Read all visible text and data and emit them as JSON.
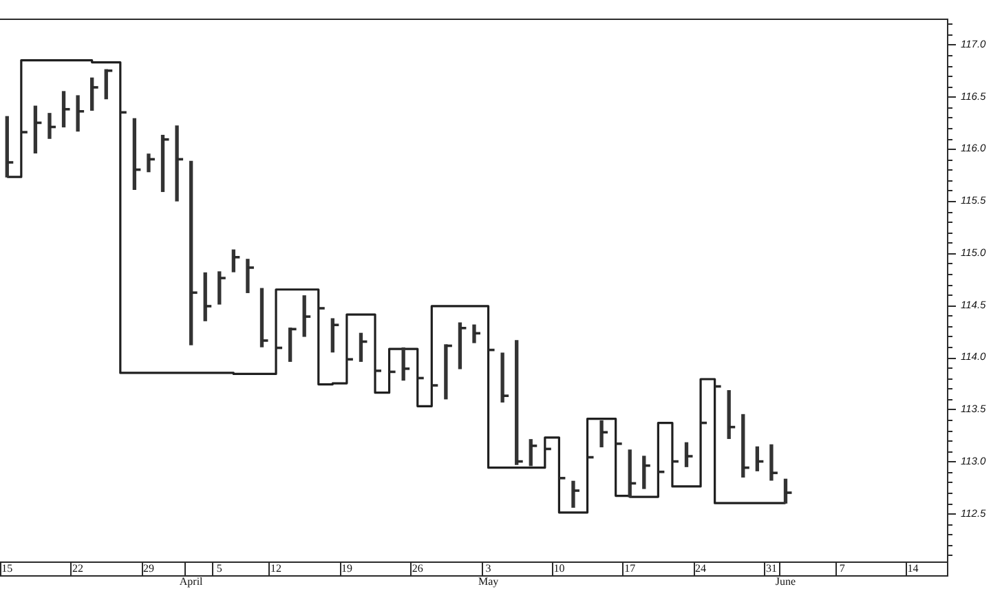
{
  "chart_data": {
    "type": "bar",
    "categories": [
      "15",
      null,
      null,
      null,
      null,
      "22",
      null,
      null,
      null,
      null,
      "29",
      null,
      null,
      "\nApril",
      null,
      "5",
      null,
      null,
      null,
      "12",
      null,
      null,
      null,
      null,
      "19",
      null,
      null,
      null,
      null,
      "26",
      null,
      null,
      null,
      null,
      "3\nMay",
      null,
      null,
      null,
      null,
      "10",
      null,
      null,
      null,
      null,
      "17",
      null,
      null,
      null,
      null,
      "24",
      null,
      null,
      null,
      null,
      "31",
      "\nJune",
      null,
      null,
      null,
      "7",
      null,
      null,
      null,
      null,
      "14",
      null,
      null
    ],
    "series": [
      {
        "color": "#333333",
        "base": [
          115.73,
          null,
          115.96,
          116.1,
          116.21,
          116.17,
          116.37,
          116.48,
          null,
          115.61,
          115.78,
          115.59,
          115.5,
          114.12,
          114.35,
          114.51,
          114.82,
          114.62,
          114.1,
          null,
          113.96,
          114.2,
          null,
          114.05,
          null,
          113.96,
          null,
          null,
          113.78,
          null,
          null,
          113.6,
          113.89,
          114.14,
          null,
          113.57,
          112.97,
          112.96,
          null,
          null,
          112.56,
          null,
          113.14,
          null,
          112.66,
          112.74,
          null,
          null,
          112.95,
          null,
          null,
          113.22,
          112.85,
          112.91,
          112.82,
          112.6,
          null,
          null,
          null,
          null,
          null,
          null,
          null,
          null,
          null,
          null,
          null
        ],
        "values": [
          0.58,
          null,
          0.45,
          0.24,
          0.34,
          0.34,
          0.31,
          0.28,
          null,
          0.68,
          0.17,
          0.54,
          0.72,
          1.76,
          0.46,
          0.31,
          0.21,
          0.32,
          0.56,
          null,
          0.32,
          0.39,
          null,
          0.32,
          null,
          0.27,
          null,
          null,
          0.31,
          null,
          null,
          0.52,
          0.44,
          0.17,
          null,
          0.47,
          1.19,
          0.25,
          null,
          null,
          0.25,
          null,
          0.25,
          null,
          0.45,
          0.31,
          null,
          null,
          0.23,
          null,
          null,
          0.46,
          0.6,
          0.23,
          0.34,
          0.23,
          null,
          null,
          null,
          null,
          null,
          null,
          null,
          null,
          null,
          null,
          null
        ]
      },
      {
        "type": "scatter",
        "color": "#2a2a2a",
        "values": [
          115.87,
          116.16,
          116.25,
          116.21,
          116.38,
          116.36,
          116.59,
          116.75,
          116.35,
          115.8,
          115.9,
          116.09,
          115.9,
          114.62,
          114.49,
          114.76,
          114.96,
          114.86,
          114.16,
          114.09,
          114.27,
          114.39,
          114.47,
          114.31,
          113.98,
          114.15,
          113.87,
          113.86,
          113.89,
          113.8,
          113.73,
          114.11,
          114.28,
          114.23,
          114.07,
          113.63,
          113.0,
          113.15,
          113.12,
          112.84,
          112.72,
          113.04,
          113.28,
          113.17,
          112.79,
          112.96,
          112.9,
          113.0,
          113.05,
          113.37,
          113.72,
          113.33,
          112.94,
          113.0,
          112.89,
          112.7,
          null,
          null,
          null,
          null,
          null,
          null,
          null,
          null,
          null,
          null,
          null
        ]
      },
      {
        "type": "step",
        "color": "#1f1f1f",
        "values": [
          115.73,
          116.85,
          116.85,
          116.85,
          116.85,
          116.85,
          116.83,
          116.83,
          113.85,
          113.85,
          113.85,
          113.85,
          113.85,
          113.85,
          113.85,
          113.85,
          113.84,
          113.84,
          113.84,
          114.65,
          114.65,
          114.65,
          113.74,
          113.75,
          114.41,
          114.41,
          113.66,
          114.08,
          114.08,
          113.53,
          114.49,
          114.49,
          114.49,
          114.49,
          112.94,
          112.94,
          112.94,
          112.94,
          113.23,
          112.51,
          112.51,
          113.41,
          113.41,
          112.67,
          112.66,
          112.66,
          113.37,
          112.76,
          112.76,
          113.79,
          112.6,
          112.6,
          112.6,
          112.6,
          112.6,
          112.6,
          null,
          null,
          null,
          null,
          null,
          null,
          null,
          null,
          null,
          null,
          null
        ]
      }
    ],
    "ylim": [
      112.04,
      117.25
    ],
    "yticks": [
      {
        "value": 112.1,
        "label": null
      },
      {
        "value": 112.2,
        "label": null
      },
      {
        "value": 112.3,
        "label": null
      },
      {
        "value": 112.4,
        "label": null
      },
      112.5,
      {
        "value": 112.6,
        "label": null
      },
      {
        "value": 112.7,
        "label": null
      },
      {
        "value": 112.8,
        "label": null
      },
      {
        "value": 112.9,
        "label": null
      },
      {
        "value": 113,
        "label": "113.0"
      },
      {
        "value": 113.1,
        "label": null
      },
      {
        "value": 113.2,
        "label": null
      },
      {
        "value": 113.3,
        "label": null
      },
      {
        "value": 113.4,
        "label": null
      },
      113.5,
      {
        "value": 113.6,
        "label": null
      },
      {
        "value": 113.7,
        "label": null
      },
      {
        "value": 113.8,
        "label": null
      },
      {
        "value": 113.9,
        "label": null
      },
      {
        "value": 114,
        "label": "114.0"
      },
      {
        "value": 114.1,
        "label": null
      },
      {
        "value": 114.2,
        "label": null
      },
      {
        "value": 114.3,
        "label": null
      },
      {
        "value": 114.4,
        "label": null
      },
      114.5,
      {
        "value": 114.6,
        "label": null
      },
      {
        "value": 114.7,
        "label": null
      },
      {
        "value": 114.8,
        "label": null
      },
      {
        "value": 114.9,
        "label": null
      },
      {
        "value": 115,
        "label": "115.0"
      },
      {
        "value": 115.1,
        "label": null
      },
      {
        "value": 115.2,
        "label": null
      },
      {
        "value": 115.3,
        "label": null
      },
      {
        "value": 115.4,
        "label": null
      },
      115.5,
      {
        "value": 115.6,
        "label": null
      },
      {
        "value": 115.7,
        "label": null
      },
      {
        "value": 115.8,
        "label": null
      },
      {
        "value": 115.9,
        "label": null
      },
      {
        "value": 116,
        "label": "116.0"
      },
      {
        "value": 116.1,
        "label": null
      },
      {
        "value": 116.2,
        "label": null
      },
      {
        "value": 116.3,
        "label": null
      },
      {
        "value": 116.4,
        "label": null
      },
      116.5,
      {
        "value": 116.6,
        "label": null
      },
      {
        "value": 116.7,
        "label": null
      },
      {
        "value": 116.8,
        "label": null
      },
      {
        "value": 116.9,
        "label": null
      },
      {
        "value": 117,
        "label": "117.0"
      },
      {
        "value": 117.1,
        "label": null
      },
      {
        "value": 117.2,
        "label": null
      }
    ]
  }
}
